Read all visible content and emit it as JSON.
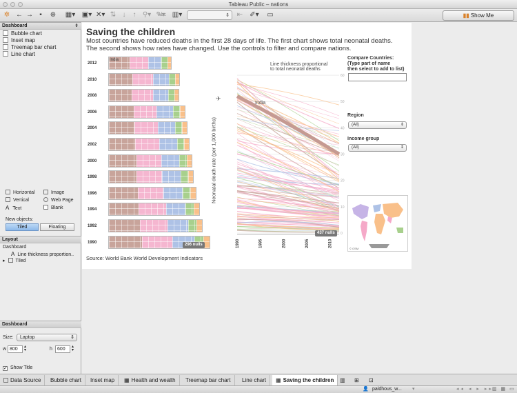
{
  "window": {
    "title": "Tableau Public – nations"
  },
  "toolbar": {
    "show_me": "Show Me",
    "abc_label": "Abc"
  },
  "left": {
    "dashboard_header": "Dashboard",
    "sheets": [
      "Bubble chart",
      "Inset map",
      "Treemap bar chart",
      "Line chart"
    ],
    "objects": {
      "horizontal": "Horizontal",
      "image": "Image",
      "vertical": "Vertical",
      "web_page": "Web Page",
      "text": "Text",
      "blank": "Blank"
    },
    "new_objects_label": "New objects:",
    "tiled": "Tiled",
    "floating": "Floating",
    "layout_header": "Layout",
    "layout_items": [
      "Dashboard",
      "Line thickness proportion..",
      "Tiled"
    ],
    "dashboard_header2": "Dashboard",
    "size_label": "Size:",
    "size_value": "Laptop",
    "w_label": "w",
    "w_value": "800",
    "h_label": "h",
    "h_value": "600",
    "show_title": "Show Title"
  },
  "dashboard": {
    "title": "Saving the children",
    "subtitle1": "Most countries have reduced deaths in the first 28 days of life. The first chart shows total neonatal deaths.",
    "subtitle2": "The second shows how rates have changed. Use the controls to filter and compare nations.",
    "source": "Source: World Bank World Development Indicators",
    "treemap_years": [
      "2012",
      "2010",
      "2008",
      "2006",
      "2004",
      "2002",
      "2000",
      "1998",
      "1996",
      "1994",
      "1992",
      "1990"
    ],
    "treemap_widths": [
      92,
      104,
      103,
      112,
      115,
      118,
      122,
      124,
      128,
      133,
      137,
      148
    ],
    "treemap_label": "India",
    "treemap_nulls": "296 nulls",
    "line_annotation1": "Line thickness proportional",
    "line_annotation2": "to total neonatal deaths",
    "line_label": "India",
    "line_nulls": "437 nulls",
    "y_axis_label": "Neonatal death rate (per 1,000 births)",
    "y_ticks": [
      "60",
      "50",
      "40",
      "30",
      "20",
      "10",
      "0"
    ],
    "x_ticks": [
      "1990",
      "1995",
      "2000",
      "2005",
      "2010"
    ],
    "compare_label1": "Compare Countries:",
    "compare_label2": "(Type part of name",
    "compare_label3": "then select to add to list)",
    "region_label": "Region",
    "region_value": "(All)",
    "income_label": "Income group",
    "income_value": "(All)",
    "map_credit": "© OSM"
  },
  "tabs": [
    "Data Source",
    "Bubble chart",
    "Inset map",
    "Health and wealth",
    "Treemap bar chart",
    "Line chart",
    "Saving the children"
  ],
  "status": {
    "user": "paldhous_w..."
  },
  "colors": {
    "brown": "#c8a49b",
    "pink": "#f5b6d0",
    "blue": "#aec2e6",
    "green": "#a8d08d",
    "orange": "#f9c08a"
  }
}
